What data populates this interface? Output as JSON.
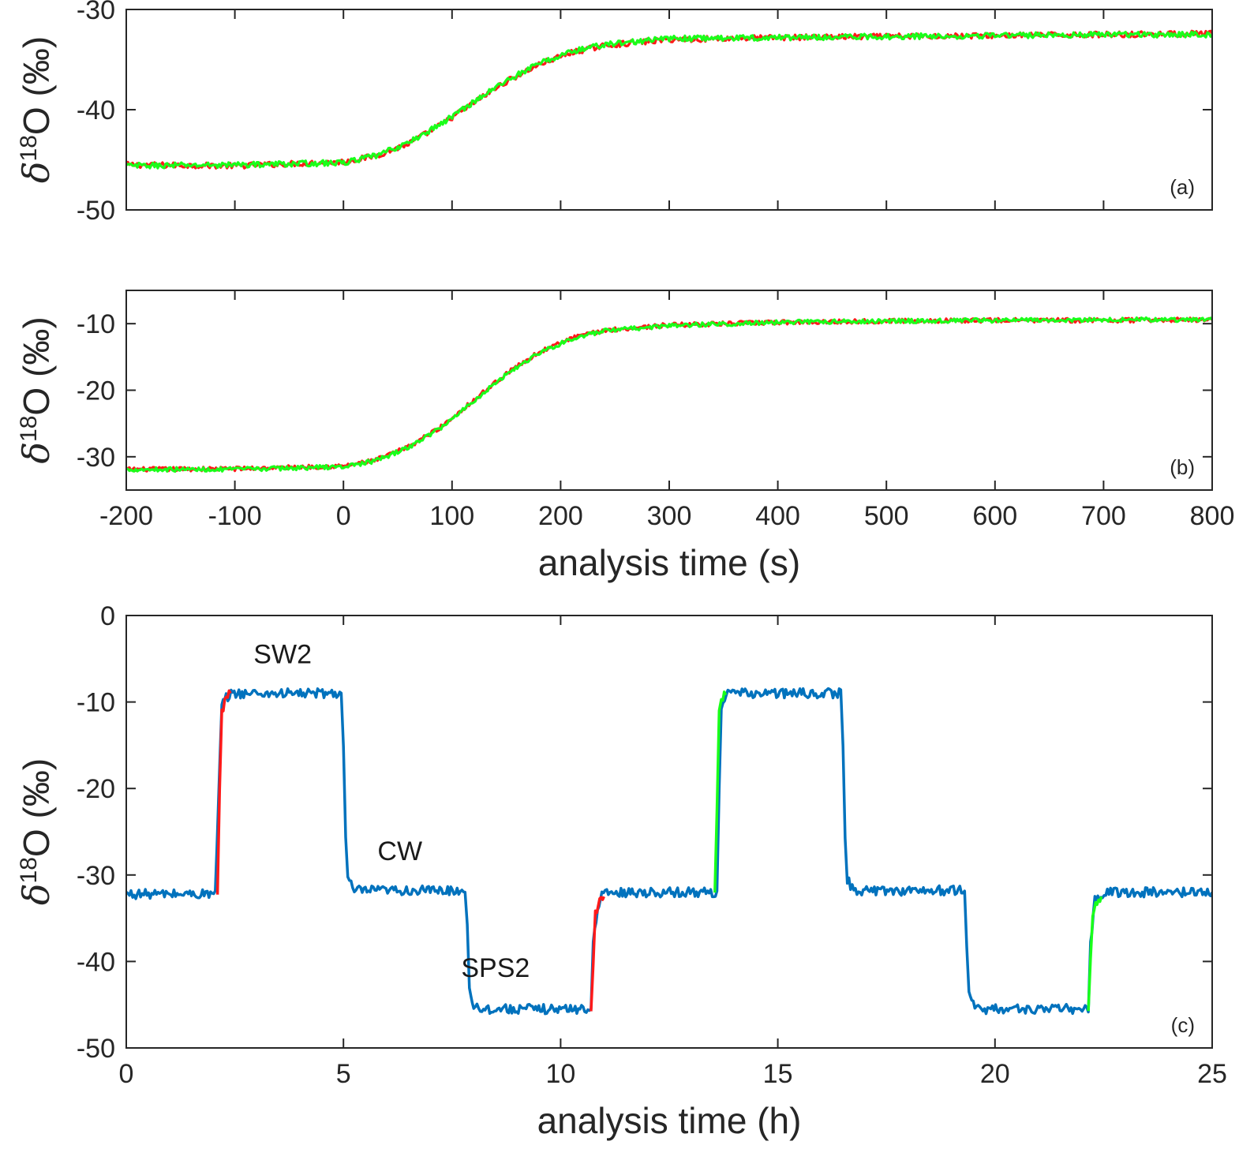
{
  "colors": {
    "red": "#ff1a1a",
    "green": "#1aff1a",
    "blue": "#0072bd",
    "axis": "#262626"
  },
  "chart_data": [
    {
      "type": "line",
      "panel_label": "(a)",
      "ylabel": {
        "delta": "δ",
        "sup": "18",
        "rest": "O (‰)"
      },
      "xlim": [
        -200,
        800
      ],
      "ylim": [
        -50,
        -30
      ],
      "yticks": [
        -50,
        -40,
        -30
      ],
      "xticks": [
        -200,
        -100,
        0,
        100,
        200,
        300,
        400,
        500,
        600,
        700,
        800
      ],
      "series": [
        {
          "color": "red",
          "x": [
            -200,
            -100,
            0,
            30,
            60,
            90,
            120,
            150,
            180,
            210,
            240,
            300,
            400,
            500,
            600,
            700,
            800
          ],
          "y": [
            -45.5,
            -45.6,
            -45.2,
            -44.6,
            -43.4,
            -41.5,
            -39.3,
            -37.2,
            -35.5,
            -34.3,
            -33.6,
            -33.0,
            -32.8,
            -32.7,
            -32.6,
            -32.5,
            -32.4
          ]
        },
        {
          "color": "green",
          "x": [
            -200,
            -100,
            0,
            30,
            60,
            90,
            120,
            150,
            180,
            210,
            240,
            300,
            400,
            500,
            600,
            700,
            800
          ],
          "y": [
            -45.6,
            -45.5,
            -45.3,
            -44.6,
            -43.3,
            -41.4,
            -39.2,
            -37.1,
            -35.4,
            -34.2,
            -33.5,
            -32.9,
            -32.8,
            -32.7,
            -32.6,
            -32.5,
            -32.5
          ]
        }
      ]
    },
    {
      "type": "line",
      "panel_label": "(b)",
      "ylabel": {
        "delta": "δ",
        "sup": "18",
        "rest": "O (‰)"
      },
      "xlim": [
        -200,
        800
      ],
      "ylim": [
        -35,
        -5
      ],
      "yticks": [
        -30,
        -20,
        -10
      ],
      "xticks": [
        -200,
        -100,
        0,
        100,
        200,
        300,
        400,
        500,
        600,
        700,
        800
      ],
      "xticklabels": [
        "-200",
        "-100",
        "0",
        "100",
        "200",
        "300",
        "400",
        "500",
        "600",
        "700",
        "800"
      ],
      "xlabel": "analysis time (s)",
      "series": [
        {
          "color": "red",
          "x": [
            -200,
            -100,
            0,
            30,
            60,
            90,
            120,
            150,
            180,
            210,
            240,
            300,
            400,
            500,
            600,
            700,
            800
          ],
          "y": [
            -31.9,
            -31.8,
            -31.4,
            -30.5,
            -28.5,
            -25.5,
            -21.5,
            -17.5,
            -14.3,
            -12.2,
            -11.0,
            -10.2,
            -9.8,
            -9.6,
            -9.5,
            -9.5,
            -9.4
          ]
        },
        {
          "color": "green",
          "x": [
            -200,
            -100,
            0,
            30,
            60,
            90,
            120,
            150,
            180,
            210,
            240,
            300,
            400,
            500,
            600,
            700,
            800
          ],
          "y": [
            -31.9,
            -31.9,
            -31.5,
            -30.6,
            -28.6,
            -25.6,
            -21.6,
            -17.6,
            -14.4,
            -12.3,
            -11.1,
            -10.3,
            -9.8,
            -9.6,
            -9.5,
            -9.4,
            -9.4
          ]
        }
      ]
    },
    {
      "type": "line",
      "panel_label": "(c)",
      "ylabel": {
        "delta": "δ",
        "sup": "18",
        "rest": "O (‰)"
      },
      "xlim": [
        0,
        25
      ],
      "ylim": [
        -50,
        0
      ],
      "yticks": [
        -50,
        -40,
        -30,
        -20,
        -10,
        0
      ],
      "xticks": [
        0,
        5,
        10,
        15,
        20,
        25
      ],
      "xticklabels": [
        "0",
        "5",
        "10",
        "15",
        "20",
        "25"
      ],
      "xlabel": "analysis time (h)",
      "annotations": [
        {
          "text": "SW2",
          "x": 3.6,
          "y": -5.5
        },
        {
          "text": "CW",
          "x": 6.3,
          "y": -28.3
        },
        {
          "text": "SPS2",
          "x": 8.5,
          "y": -41.8
        }
      ],
      "series": [
        {
          "color": "blue",
          "x": [
            0,
            2.05,
            2.2,
            2.3,
            2.45,
            4.95,
            5.0,
            5.05,
            5.1,
            5.25,
            7.8,
            7.85,
            7.9,
            8.0,
            8.15,
            10.7,
            10.75,
            10.85,
            10.95,
            11.1,
            13.6,
            13.65,
            13.7,
            13.85,
            16.45,
            16.5,
            16.55,
            16.6,
            16.75,
            19.3,
            19.35,
            19.4,
            19.5,
            19.65,
            22.15,
            22.2,
            22.3,
            22.4,
            22.55,
            25.0
          ],
          "y": [
            -32.2,
            -32.2,
            -10.5,
            -9.5,
            -9.0,
            -9.0,
            -15.0,
            -26.0,
            -30.5,
            -31.8,
            -31.8,
            -36.0,
            -43.0,
            -45.0,
            -45.5,
            -45.5,
            -38.0,
            -33.5,
            -32.5,
            -32.0,
            -32.0,
            -20.0,
            -10.5,
            -9.0,
            -9.0,
            -15.0,
            -26.0,
            -30.5,
            -31.8,
            -31.8,
            -38.0,
            -43.5,
            -45.0,
            -45.5,
            -45.5,
            -38.0,
            -33.0,
            -32.3,
            -32.0,
            -32.0
          ]
        },
        {
          "color": "red",
          "x": [
            2.1,
            2.15,
            2.2,
            2.3,
            2.4
          ],
          "y": [
            -32.5,
            -20.0,
            -11.0,
            -9.5,
            -9.0
          ]
        },
        {
          "color": "red",
          "x": [
            10.7,
            10.75,
            10.8,
            10.9,
            11.0
          ],
          "y": [
            -46.0,
            -40.0,
            -34.5,
            -33.0,
            -32.5
          ]
        },
        {
          "color": "green",
          "x": [
            13.55,
            13.6,
            13.65,
            13.7,
            13.8
          ],
          "y": [
            -32.3,
            -22.0,
            -10.5,
            -9.5,
            -9.2
          ]
        },
        {
          "color": "green",
          "x": [
            22.15,
            22.2,
            22.25,
            22.35,
            22.45
          ],
          "y": [
            -46.0,
            -40.0,
            -34.5,
            -33.0,
            -32.5
          ]
        }
      ]
    }
  ]
}
